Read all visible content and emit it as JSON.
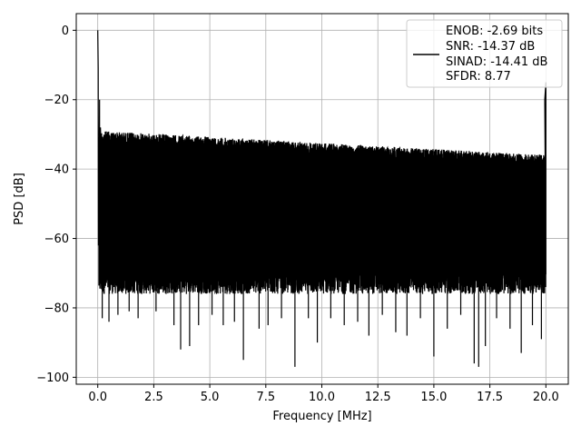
{
  "chart_data": {
    "type": "line",
    "title": "",
    "xlabel": "Frequency [MHz]",
    "ylabel": "PSD [dB]",
    "xlim": [
      -0.96,
      21.0
    ],
    "ylim": [
      -102.0,
      4.8
    ],
    "x_ticks": [
      0.0,
      2.5,
      5.0,
      7.5,
      10.0,
      12.5,
      15.0,
      17.5,
      20.0
    ],
    "x_tick_labels": [
      "0.0",
      "2.5",
      "5.0",
      "7.5",
      "10.0",
      "12.5",
      "15.0",
      "17.5",
      "20.0"
    ],
    "y_ticks": [
      0,
      -20,
      -40,
      -60,
      -80,
      -100
    ],
    "y_tick_labels": [
      "0",
      "−20",
      "−40",
      "−60",
      "−80",
      "−100"
    ],
    "grid": true,
    "legend_position": "top-right",
    "line_color": "#000000",
    "series": [
      {
        "name": "ENOB: -2.69 bits\nSNR: -14.37 dB\nSINAD: -14.41 dB\nSFDR: 8.77",
        "legend_lines": [
          "ENOB: -2.69 bits",
          "SNR: -14.37 dB",
          "SINAD: -14.41 dB",
          "SFDR: 8.77"
        ],
        "noise_floor": {
          "x_range": [
            0.05,
            20.0
          ],
          "upper_envelope_start": -29,
          "upper_envelope_end": -36,
          "lower_typical": -72,
          "deep_minima": [
            {
              "x": 0.2,
              "y": -83
            },
            {
              "x": 0.5,
              "y": -84
            },
            {
              "x": 0.9,
              "y": -82
            },
            {
              "x": 1.4,
              "y": -81
            },
            {
              "x": 1.8,
              "y": -83
            },
            {
              "x": 2.6,
              "y": -81
            },
            {
              "x": 3.4,
              "y": -85
            },
            {
              "x": 3.7,
              "y": -92
            },
            {
              "x": 4.1,
              "y": -91
            },
            {
              "x": 4.5,
              "y": -85
            },
            {
              "x": 5.1,
              "y": -82
            },
            {
              "x": 5.6,
              "y": -85
            },
            {
              "x": 6.1,
              "y": -84
            },
            {
              "x": 6.5,
              "y": -95
            },
            {
              "x": 7.2,
              "y": -86
            },
            {
              "x": 7.6,
              "y": -85
            },
            {
              "x": 8.2,
              "y": -83
            },
            {
              "x": 8.8,
              "y": -97
            },
            {
              "x": 9.4,
              "y": -83
            },
            {
              "x": 9.8,
              "y": -90
            },
            {
              "x": 10.4,
              "y": -83
            },
            {
              "x": 11.0,
              "y": -85
            },
            {
              "x": 11.6,
              "y": -84
            },
            {
              "x": 12.1,
              "y": -88
            },
            {
              "x": 12.7,
              "y": -82
            },
            {
              "x": 13.3,
              "y": -87
            },
            {
              "x": 13.8,
              "y": -88
            },
            {
              "x": 14.4,
              "y": -83
            },
            {
              "x": 15.0,
              "y": -94
            },
            {
              "x": 15.6,
              "y": -86
            },
            {
              "x": 16.2,
              "y": -82
            },
            {
              "x": 16.8,
              "y": -96
            },
            {
              "x": 17.0,
              "y": -97
            },
            {
              "x": 17.3,
              "y": -91
            },
            {
              "x": 17.8,
              "y": -83
            },
            {
              "x": 18.4,
              "y": -86
            },
            {
              "x": 18.9,
              "y": -93
            },
            {
              "x": 19.4,
              "y": -85
            },
            {
              "x": 19.8,
              "y": -89
            }
          ]
        },
        "peaks": [
          {
            "x": 0.0,
            "y": 0
          },
          {
            "x": 0.02,
            "y": -11
          },
          {
            "x": 0.03,
            "y": -62
          },
          {
            "x": 0.08,
            "y": -20
          },
          {
            "x": 0.12,
            "y": -28
          },
          {
            "x": 19.95,
            "y": -20
          },
          {
            "x": 20.0,
            "y": -15
          },
          {
            "x": 20.0,
            "y": -70
          }
        ]
      }
    ]
  }
}
